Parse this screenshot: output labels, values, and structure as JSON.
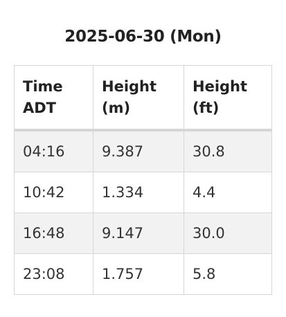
{
  "caption": "2025-06-30 (Mon)",
  "headers": {
    "time": "Time ADT",
    "height_m": "Height (m)",
    "height_ft": "Height (ft)"
  },
  "rows": [
    {
      "time": "04:16",
      "height_m": "9.387",
      "height_ft": "30.8"
    },
    {
      "time": "10:42",
      "height_m": "1.334",
      "height_ft": "4.4"
    },
    {
      "time": "16:48",
      "height_m": "9.147",
      "height_ft": "30.0"
    },
    {
      "time": "23:08",
      "height_m": "1.757",
      "height_ft": "5.8"
    }
  ],
  "colors": {
    "text": "#222222",
    "border": "#d6d6d6",
    "stripe": "#f2f2f2"
  }
}
